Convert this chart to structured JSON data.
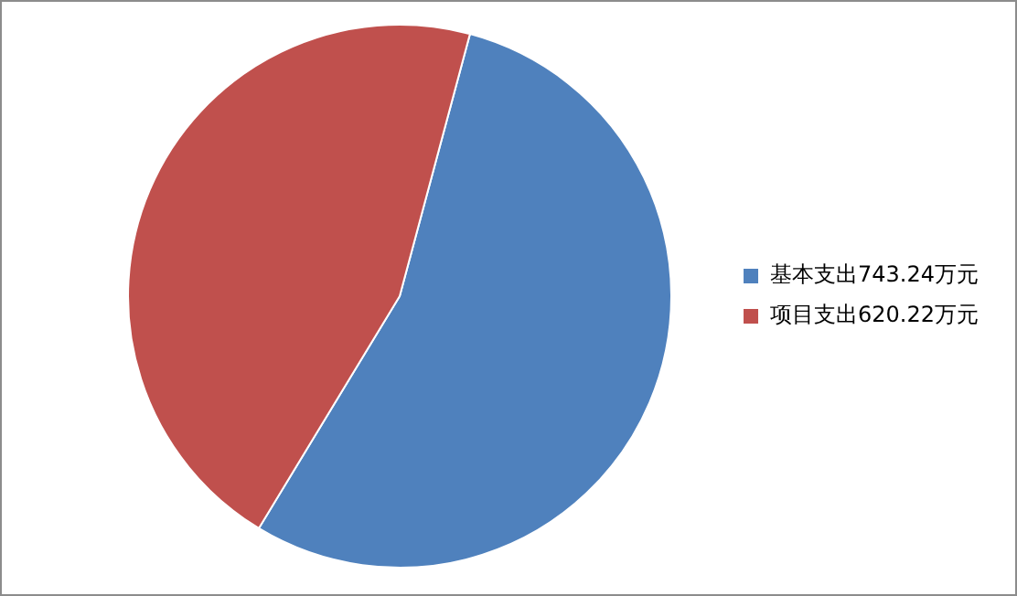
{
  "chart_data": {
    "type": "pie",
    "categories": [
      "基本支出743.24万元",
      "项目支出620.22万元"
    ],
    "values": [
      743.24,
      620.22
    ],
    "colors": [
      "#4f81bd",
      "#c0504d"
    ],
    "legend": "right"
  }
}
